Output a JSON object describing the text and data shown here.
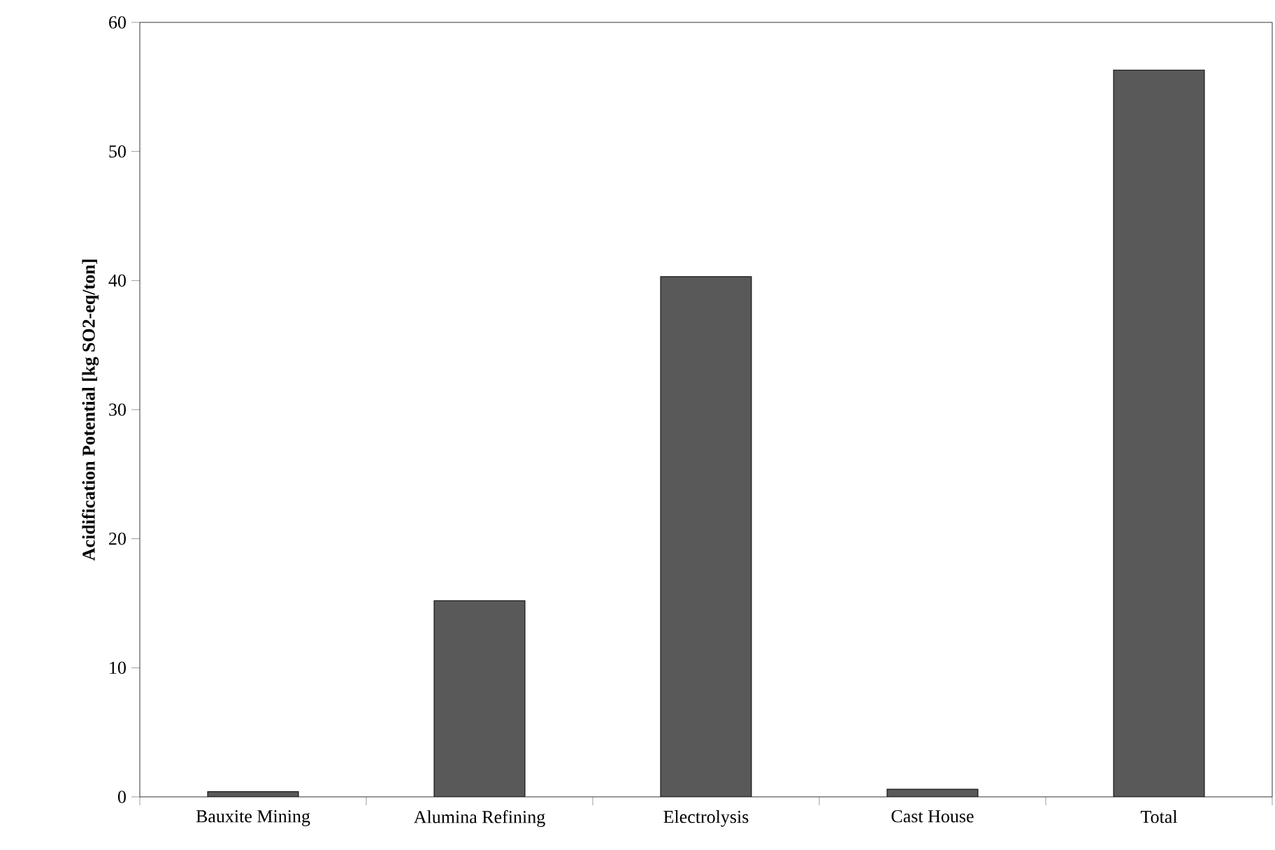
{
  "chart_data": {
    "type": "bar",
    "ylabel": "Acidification Potential [kg SO2-eq/ton]",
    "categories": [
      "Bauxite Mining",
      "Alumina Refining",
      "Electrolysis",
      "Cast House",
      "Total"
    ],
    "values": [
      0.4,
      15.2,
      40.3,
      0.6,
      56.3
    ],
    "color": "#595959",
    "ylim": [
      0,
      60
    ],
    "yticks": [
      0,
      10,
      20,
      30,
      40,
      50,
      60
    ],
    "grid": false
  }
}
